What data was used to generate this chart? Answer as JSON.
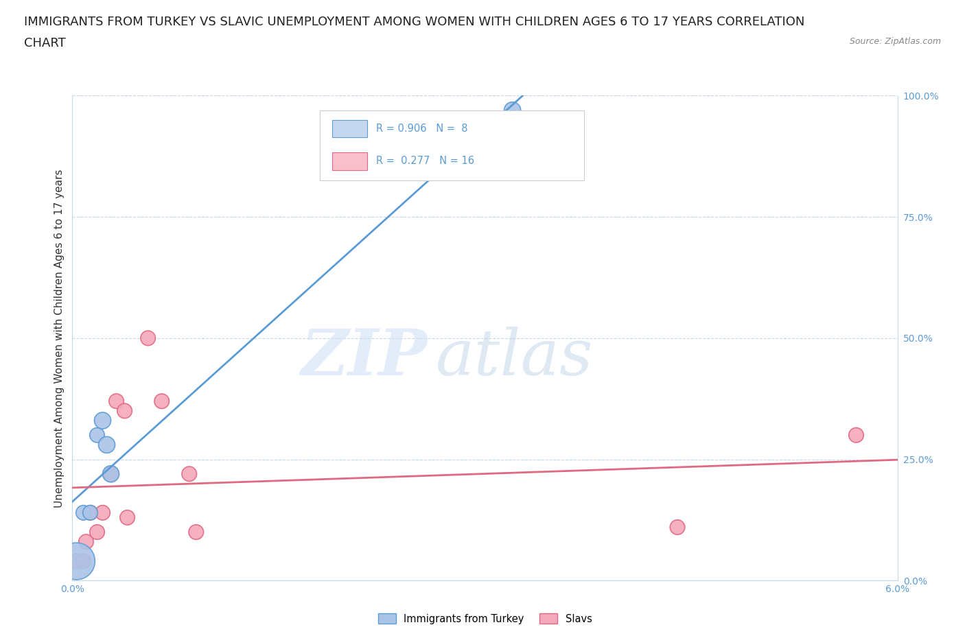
{
  "title_line1": "IMMIGRANTS FROM TURKEY VS SLAVIC UNEMPLOYMENT AMONG WOMEN WITH CHILDREN AGES 6 TO 17 YEARS CORRELATION",
  "title_line2": "CHART",
  "source": "Source: ZipAtlas.com",
  "ylabel": "Unemployment Among Women with Children Ages 6 to 17 years",
  "xlim": [
    0.0,
    0.06
  ],
  "ylim": [
    0.0,
    1.0
  ],
  "x_ticks": [
    0.0,
    0.012,
    0.024,
    0.036,
    0.048,
    0.06
  ],
  "x_tick_labels": [
    "0.0%",
    "",
    "",
    "",
    "",
    "6.0%"
  ],
  "y_ticks_right": [
    0.0,
    0.25,
    0.5,
    0.75,
    1.0
  ],
  "y_tick_labels_right": [
    "0.0%",
    "25.0%",
    "50.0%",
    "75.0%",
    "100.0%"
  ],
  "turkey_points_x": [
    0.0003,
    0.0008,
    0.0013,
    0.0018,
    0.0022,
    0.0025,
    0.0028,
    0.032
  ],
  "turkey_points_y": [
    0.04,
    0.14,
    0.14,
    0.3,
    0.33,
    0.28,
    0.22,
    0.97
  ],
  "turkey_sizes": [
    500,
    80,
    80,
    80,
    100,
    100,
    100,
    100
  ],
  "slavs_points_x": [
    0.0003,
    0.0008,
    0.001,
    0.0013,
    0.0018,
    0.0022,
    0.0028,
    0.0032,
    0.0038,
    0.004,
    0.0055,
    0.0065,
    0.0085,
    0.009,
    0.044,
    0.057
  ],
  "slavs_points_y": [
    0.04,
    0.04,
    0.08,
    0.14,
    0.1,
    0.14,
    0.22,
    0.37,
    0.35,
    0.13,
    0.5,
    0.37,
    0.22,
    0.1,
    0.11,
    0.3
  ],
  "slavs_sizes": [
    80,
    80,
    80,
    80,
    80,
    80,
    80,
    80,
    80,
    80,
    80,
    80,
    80,
    80,
    80,
    80
  ],
  "turkey_color": "#aac4e8",
  "turkey_edge_color": "#5b9bd5",
  "slavs_color": "#f4a8bc",
  "slavs_edge_color": "#e06880",
  "trendline_turkey_color": "#5b9bd5",
  "trendline_slavs_color": "#e06880",
  "R_turkey": 0.906,
  "N_turkey": 8,
  "R_slavs": 0.277,
  "N_slavs": 16,
  "legend_label_turkey": "Immigrants from Turkey",
  "legend_label_slavs": "Slavs",
  "watermark_zip": "ZIP",
  "watermark_atlas": "atlas",
  "background_color": "#ffffff",
  "grid_color": "#c8d8e8",
  "title_fontsize": 13,
  "axis_label_fontsize": 11,
  "tick_fontsize": 10,
  "legend_box_color_turkey": "#c5d8f0",
  "legend_box_color_slavs": "#f9c0cc",
  "turkey_trendline_start_x": 0.0,
  "turkey_trendline_end_x": 0.0355,
  "slavs_trendline_start_x": 0.0,
  "slavs_trendline_end_x": 0.06
}
